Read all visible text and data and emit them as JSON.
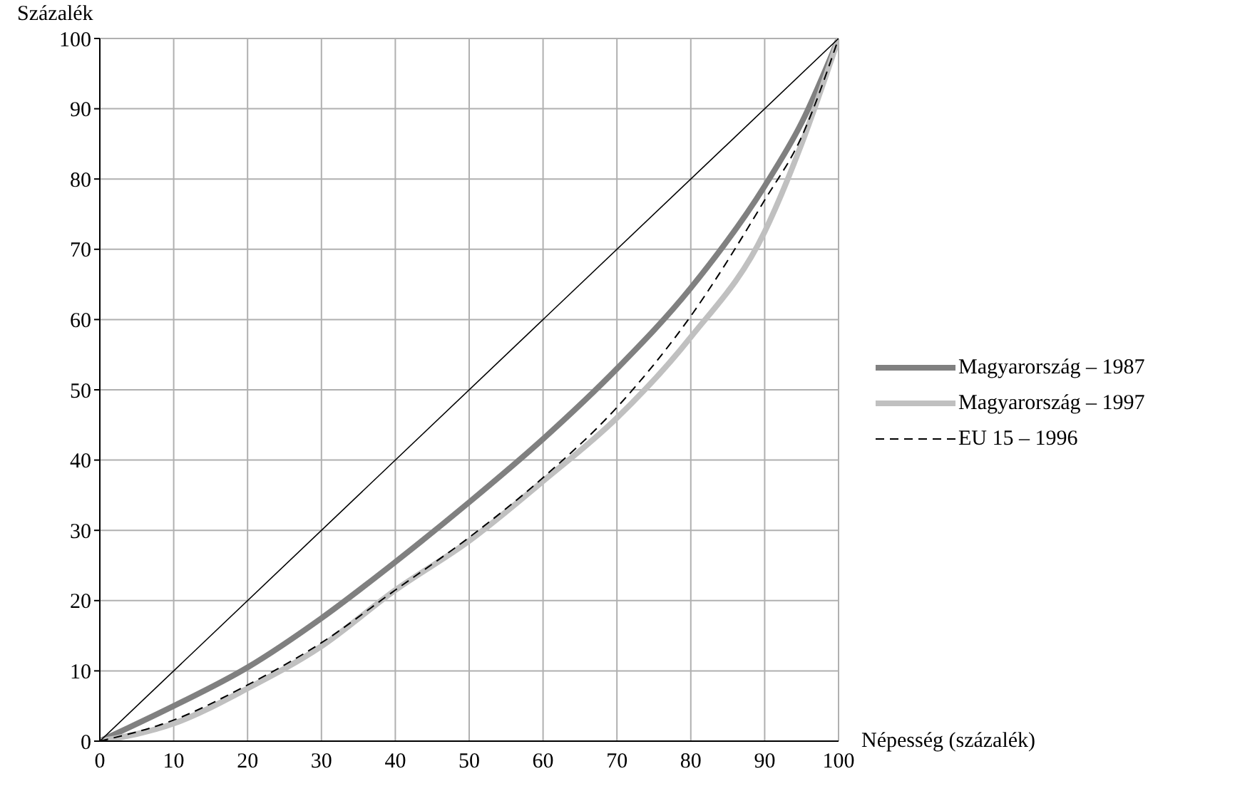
{
  "chart_data": {
    "type": "line",
    "ylabel": "Százalék",
    "xlabel": "Népesség (százalék)",
    "x": [
      0,
      10,
      20,
      30,
      40,
      50,
      60,
      70,
      80,
      90,
      95,
      100
    ],
    "series": [
      {
        "name": "Magyarország – 1987",
        "color": "#808080",
        "values": [
          0,
          5,
          10.5,
          17.5,
          25.5,
          34,
          43,
          53,
          64.5,
          79,
          88,
          100
        ]
      },
      {
        "name": "Magyarország – 1997",
        "color": "#c0c0c0",
        "values": [
          0,
          2.5,
          7.5,
          13.5,
          21.5,
          28.5,
          37,
          46,
          57.5,
          72.5,
          85,
          100
        ]
      },
      {
        "name": "EU 15 – 1996",
        "color": "#000000",
        "line_style": "dashed",
        "values": [
          0,
          3,
          8,
          14,
          21.5,
          29,
          37.5,
          47.5,
          60.5,
          77,
          86,
          100
        ]
      },
      {
        "color": "#000000",
        "x": [
          0,
          100
        ],
        "values": [
          0,
          100
        ]
      }
    ],
    "xlim": [
      0,
      100
    ],
    "xticks": [
      0,
      10,
      20,
      30,
      40,
      50,
      60,
      70,
      80,
      90,
      100
    ],
    "ylim": [
      0,
      100
    ],
    "yticks": [
      0,
      10,
      20,
      30,
      40,
      50,
      60,
      70,
      80,
      90,
      100
    ],
    "grid": true,
    "legend": "right",
    "marker": "none",
    "line_style": "solid"
  }
}
